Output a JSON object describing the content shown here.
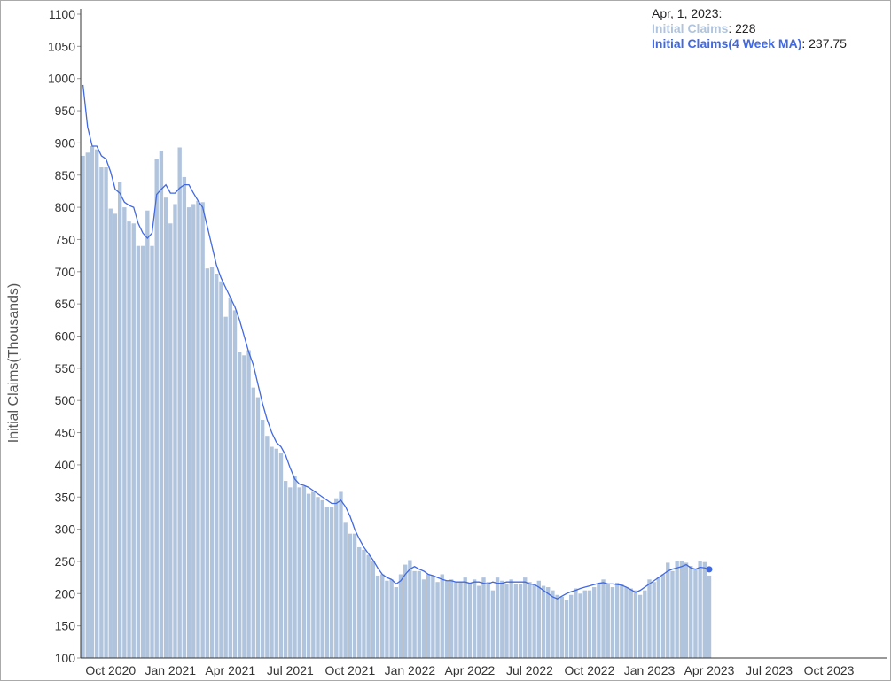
{
  "chart_data": {
    "type": "bar_line",
    "y_label": "Initial Claims(Thousands)",
    "ylim": [
      100,
      1100
    ],
    "yticks": [
      100,
      150,
      200,
      250,
      300,
      350,
      400,
      450,
      500,
      550,
      600,
      650,
      700,
      750,
      800,
      850,
      900,
      950,
      1000,
      1050,
      1100
    ],
    "categories": [
      null,
      null,
      null,
      null,
      null,
      null,
      "Oct 2020",
      null,
      null,
      null,
      null,
      null,
      null,
      null,
      null,
      null,
      null,
      null,
      null,
      "Jan 2021",
      null,
      null,
      null,
      null,
      null,
      null,
      null,
      null,
      null,
      null,
      null,
      null,
      "Apr 2021",
      null,
      null,
      null,
      null,
      null,
      null,
      null,
      null,
      null,
      null,
      null,
      null,
      "Jul 2021",
      null,
      null,
      null,
      null,
      null,
      null,
      null,
      null,
      null,
      null,
      null,
      null,
      "Oct 2021",
      null,
      null,
      null,
      null,
      null,
      null,
      null,
      null,
      null,
      null,
      null,
      null,
      "Jan 2022",
      null,
      null,
      null,
      null,
      null,
      null,
      null,
      null,
      null,
      null,
      null,
      null,
      "Apr 2022",
      null,
      null,
      null,
      null,
      null,
      null,
      null,
      null,
      null,
      null,
      null,
      null,
      "Jul 2022",
      null,
      null,
      null,
      null,
      null,
      null,
      null,
      null,
      null,
      null,
      null,
      null,
      "Oct 2022",
      null,
      null,
      null,
      null,
      null,
      null,
      null,
      null,
      null,
      null,
      null,
      null,
      "Jan 2023",
      null,
      null,
      null,
      null,
      null,
      null,
      null,
      null,
      null,
      null,
      null,
      null,
      "Apr 2023",
      null,
      null,
      null,
      null,
      null,
      null,
      null,
      null,
      null,
      null,
      null,
      null,
      "Jul 2023",
      null,
      null,
      null,
      null,
      null,
      null,
      null,
      null,
      null,
      null,
      null,
      null,
      "Oct 2023",
      null,
      null,
      null,
      null,
      null,
      null,
      null,
      null,
      null,
      null,
      null,
      null
    ],
    "series": [
      {
        "name": "Initial Claims",
        "kind": "bar",
        "color": "#b0c4de",
        "values": [
          880,
          885,
          895,
          890,
          862,
          862,
          798,
          790,
          840,
          800,
          778,
          775,
          740,
          740,
          795,
          740,
          875,
          888,
          815,
          775,
          805,
          893,
          847,
          800,
          805,
          810,
          808,
          705,
          707,
          697,
          685,
          630,
          660,
          640,
          575,
          570,
          578,
          520,
          505,
          470,
          445,
          428,
          425,
          418,
          375,
          365,
          383,
          365,
          367,
          355,
          358,
          350,
          345,
          335,
          335,
          348,
          358,
          310,
          293,
          293,
          272,
          268,
          260,
          250,
          228,
          230,
          220,
          222,
          210,
          230,
          245,
          252,
          235,
          235,
          222,
          230,
          228,
          218,
          230,
          220,
          222,
          218,
          218,
          225,
          215,
          222,
          212,
          225,
          218,
          205,
          225,
          220,
          215,
          222,
          215,
          215,
          225,
          218,
          215,
          220,
          212,
          210,
          205,
          198,
          195,
          190,
          198,
          208,
          200,
          205,
          205,
          210,
          215,
          222,
          215,
          210,
          217,
          215,
          210,
          208,
          205,
          198,
          205,
          222,
          218,
          225,
          230,
          248,
          235,
          250,
          250,
          248,
          243,
          238,
          250,
          249,
          228,
          null,
          null,
          null,
          null,
          null,
          null,
          null,
          null,
          null,
          null,
          null,
          null,
          null,
          null,
          null,
          null,
          null,
          null,
          null,
          null,
          null,
          null,
          null,
          null,
          null,
          null,
          null,
          null,
          null,
          null,
          null,
          null,
          null,
          null,
          null,
          null,
          null,
          null
        ]
      },
      {
        "name": "Initial Claims(4 Week MA)",
        "kind": "line",
        "color": "#4169e1",
        "values": [
          990,
          925,
          895,
          895,
          880,
          875,
          855,
          828,
          822,
          808,
          803,
          800,
          775,
          760,
          752,
          760,
          820,
          828,
          835,
          822,
          822,
          830,
          835,
          835,
          822,
          810,
          800,
          770,
          740,
          710,
          690,
          675,
          660,
          645,
          625,
          600,
          575,
          555,
          525,
          495,
          470,
          450,
          435,
          428,
          415,
          395,
          378,
          370,
          368,
          365,
          360,
          355,
          350,
          345,
          340,
          340,
          345,
          335,
          320,
          300,
          285,
          272,
          262,
          252,
          240,
          230,
          225,
          222,
          215,
          220,
          230,
          238,
          242,
          238,
          235,
          230,
          228,
          225,
          222,
          220,
          220,
          218,
          218,
          218,
          216,
          218,
          218,
          216,
          215,
          218,
          216,
          216,
          218,
          218,
          218,
          218,
          218,
          215,
          214,
          210,
          205,
          200,
          195,
          192,
          196,
          200,
          203,
          205,
          208,
          210,
          212,
          214,
          216,
          217,
          215,
          215,
          214,
          213,
          210,
          206,
          202,
          205,
          210,
          215,
          220,
          225,
          230,
          235,
          238,
          240,
          242,
          245,
          240,
          238,
          241,
          240,
          237.75,
          null,
          null,
          null,
          null,
          null,
          null,
          null,
          null,
          null,
          null,
          null,
          null,
          null,
          null,
          null,
          null,
          null,
          null,
          null,
          null,
          null,
          null,
          null,
          null,
          null,
          null,
          null,
          null,
          null,
          null,
          null,
          null,
          null,
          null,
          null,
          null,
          null,
          null
        ]
      }
    ],
    "tooltip": {
      "title": "Apr, 1, 2023:",
      "entries": [
        ": 228",
        ": 237.75"
      ]
    }
  }
}
